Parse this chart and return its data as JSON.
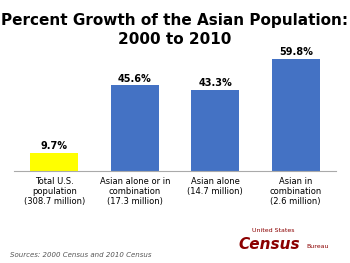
{
  "title": "Percent Growth of the Asian Population:\n2000 to 2010",
  "categories": [
    "Total U.S.\npopulation\n(308.7 million)",
    "Asian alone or in\ncombination\n(17.3 million)",
    "Asian alone\n(14.7 million)",
    "Asian in\ncombination\n(2.6 million)"
  ],
  "values": [
    9.7,
    45.6,
    43.3,
    59.8
  ],
  "bar_colors": [
    "#FFFF00",
    "#4472C4",
    "#4472C4",
    "#4472C4"
  ],
  "value_labels": [
    "9.7%",
    "45.6%",
    "43.3%",
    "59.8%"
  ],
  "ylim": [
    0,
    70
  ],
  "source_text": "Sources: 2000 Census and 2010 Census",
  "background_color": "#FFFFFF",
  "title_fontsize": 11,
  "label_fontsize": 6.0,
  "value_fontsize": 7.0,
  "census_text1": "United States",
  "census_text2": "Census",
  "census_text3": "Bureau"
}
